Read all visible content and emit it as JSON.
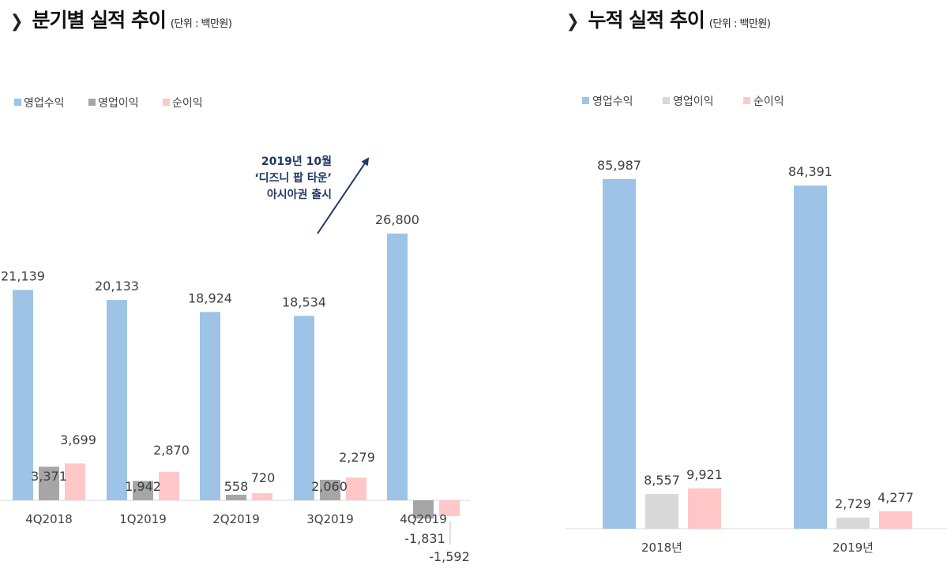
{
  "colors": {
    "revenue": "#9dc3e6",
    "op_quarterly": "#a6a6a6",
    "op_cumulative": "#d9d9d9",
    "net": "#ffc7c7",
    "axis": "#d9d9d9",
    "annotation": "#1f3864"
  },
  "chart_data": [
    {
      "type": "bar",
      "title": "분기별 실적 추이",
      "unit": "(단위 : 백만원)",
      "categories": [
        "4Q2018",
        "1Q2019",
        "2Q2019",
        "3Q2019",
        "4Q2019"
      ],
      "series": [
        {
          "name": "영업수익",
          "values": [
            21139,
            20133,
            18924,
            18534,
            26800
          ],
          "labels": [
            "21,139",
            "20,133",
            "18,924",
            "18,534",
            "26,800"
          ]
        },
        {
          "name": "영업이익",
          "values": [
            3371,
            1942,
            558,
            2060,
            -1831
          ],
          "labels": [
            "3,371",
            "1,942",
            "558",
            "2,060",
            "-1,831"
          ]
        },
        {
          "name": "순이익",
          "values": [
            3699,
            2870,
            720,
            2279,
            -1592
          ],
          "labels": [
            "3,699",
            "2,870",
            "720",
            "2,279",
            "-1,592"
          ]
        }
      ],
      "annotation": [
        "2019년 10월",
        "‘디즈니 팝 타운’",
        "아시아권 출시"
      ],
      "legend": "top-left"
    },
    {
      "type": "bar",
      "title": "누적 실적 추이",
      "unit": "(단위 : 백만원)",
      "categories": [
        "2018년",
        "2019년"
      ],
      "series": [
        {
          "name": "영업수익",
          "values": [
            85987,
            84391
          ],
          "labels": [
            "85,987",
            "84,391"
          ]
        },
        {
          "name": "영업이익",
          "values": [
            8557,
            2729
          ],
          "labels": [
            "8,557",
            "2,729"
          ]
        },
        {
          "name": "순이익",
          "values": [
            9921,
            4277
          ],
          "labels": [
            "9,921",
            "4,277"
          ]
        }
      ],
      "legend": "top-left"
    }
  ]
}
